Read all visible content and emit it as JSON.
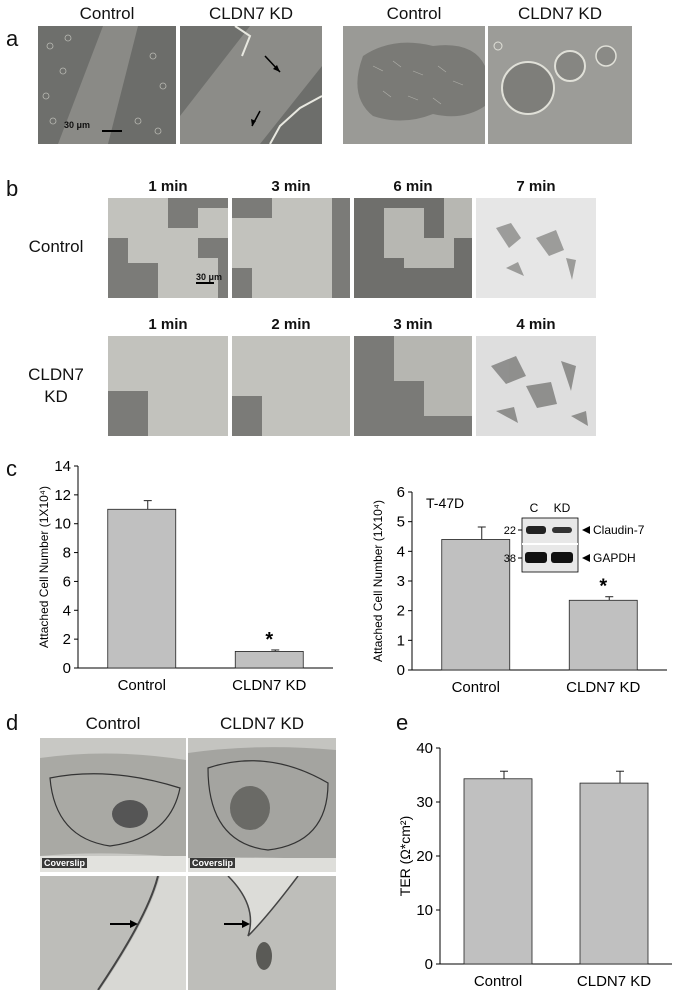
{
  "panels": {
    "a": {
      "letter": "a",
      "labels": [
        "Control",
        "CLDN7 KD",
        "Control",
        "CLDN7 KD"
      ],
      "scale_bar": "30 μm"
    },
    "b": {
      "letter": "b",
      "control_label": "Control",
      "kd_label": "CLDN7\nKD",
      "control_times": [
        "1 min",
        "3 min",
        "6 min",
        "7 min"
      ],
      "kd_times": [
        "1 min",
        "2 min",
        "3 min",
        "4 min"
      ],
      "scale_bar": "30 μm"
    },
    "c": {
      "letter": "c"
    },
    "d": {
      "letter": "d",
      "labels": [
        "Control",
        "CLDN7 KD"
      ],
      "coverslip": "Coverslip"
    },
    "e": {
      "letter": "e"
    }
  },
  "chart_data": [
    {
      "id": "c-left",
      "type": "bar",
      "categories": [
        "Control",
        "CLDN7 KD"
      ],
      "values": [
        11.0,
        1.15
      ],
      "errors": [
        0.6,
        0.1
      ],
      "ylabel": "Attached Cell Number (1X10⁴)",
      "ylim": [
        0,
        14
      ],
      "yticks": [
        0,
        2,
        4,
        6,
        8,
        10,
        12,
        14
      ],
      "significance": [
        "",
        "*"
      ]
    },
    {
      "id": "c-right",
      "type": "bar",
      "categories": [
        "Control",
        "CLDN7 KD"
      ],
      "values": [
        4.4,
        2.35
      ],
      "errors": [
        0.42,
        0.12
      ],
      "ylabel": "Attached Cell Number (1X10⁴)",
      "ylim": [
        0,
        6
      ],
      "yticks": [
        0,
        1,
        2,
        3,
        4,
        5,
        6
      ],
      "significance": [
        "",
        "*"
      ],
      "annotation": "T-47D",
      "blot": {
        "lanes": [
          "C",
          "KD"
        ],
        "markers": [
          "22",
          "38"
        ],
        "bands": [
          "Claudin-7",
          "GAPDH"
        ]
      }
    },
    {
      "id": "e",
      "type": "bar",
      "categories": [
        "Control",
        "CLDN7 KD"
      ],
      "values": [
        34.3,
        33.5
      ],
      "errors": [
        1.4,
        2.2
      ],
      "ylabel": "TER (Ω*cm²)",
      "ylim": [
        0,
        40
      ],
      "yticks": [
        0,
        10,
        20,
        30,
        40
      ],
      "significance": [
        "",
        ""
      ]
    }
  ]
}
